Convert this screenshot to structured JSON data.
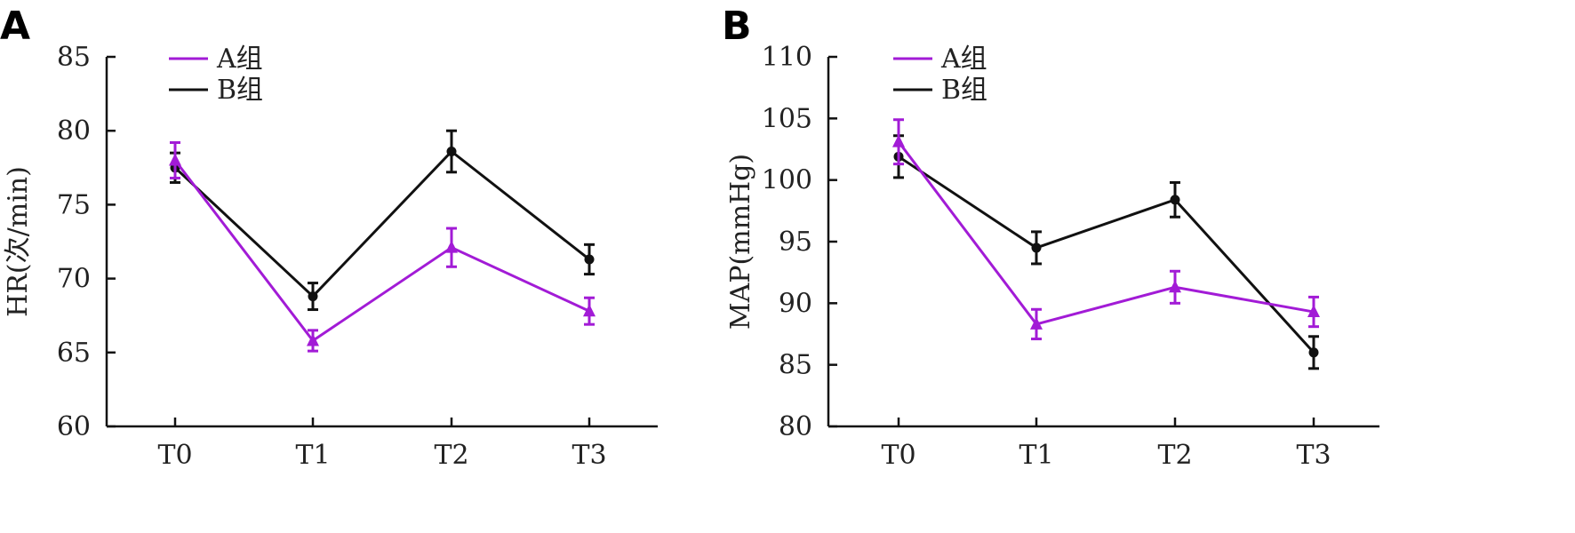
{
  "chart_data": [
    {
      "type": "line",
      "panel": "A",
      "categories": [
        "T0",
        "T1",
        "T2",
        "T3"
      ],
      "ylabel": "HR(次/min)",
      "ylim": [
        60,
        85
      ],
      "yticks": [
        60,
        65,
        70,
        75,
        80,
        85
      ],
      "legend_position": "top-left",
      "series": [
        {
          "name": "A组",
          "color": "#a21bd6",
          "marker": "triangle",
          "values": [
            78.0,
            65.8,
            72.1,
            67.8
          ],
          "errors": [
            1.2,
            0.7,
            1.3,
            0.9
          ]
        },
        {
          "name": "B组",
          "color": "#111111",
          "marker": "circle",
          "values": [
            77.5,
            68.8,
            78.6,
            71.3
          ],
          "errors": [
            1.0,
            0.9,
            1.4,
            1.0
          ]
        }
      ]
    },
    {
      "type": "line",
      "panel": "B",
      "categories": [
        "T0",
        "T1",
        "T2",
        "T3"
      ],
      "ylabel": "MAP(mmHg)",
      "ylim": [
        80,
        110
      ],
      "yticks": [
        80,
        85,
        90,
        95,
        100,
        105,
        110
      ],
      "legend_position": "top-left",
      "series": [
        {
          "name": "A组",
          "color": "#a21bd6",
          "marker": "triangle",
          "values": [
            103.1,
            88.3,
            91.3,
            89.3
          ],
          "errors": [
            1.8,
            1.2,
            1.3,
            1.2
          ]
        },
        {
          "name": "B组",
          "color": "#111111",
          "marker": "circle",
          "values": [
            101.9,
            94.5,
            98.4,
            86.0
          ],
          "errors": [
            1.7,
            1.3,
            1.4,
            1.3
          ]
        }
      ]
    }
  ]
}
